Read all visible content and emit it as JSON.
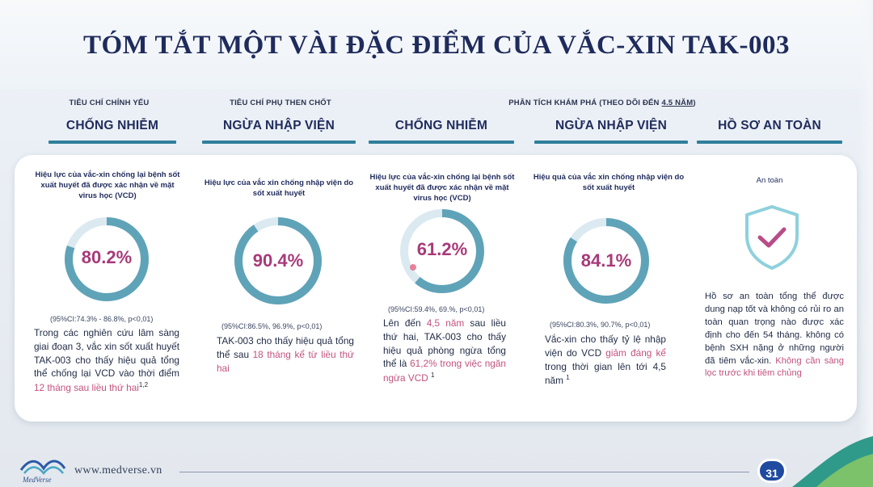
{
  "slide": {
    "title": "TÓM TẮT MỘT VÀI ĐẶC ĐIỂM CỦA VẮC-XIN TAK-003",
    "page_number": "31",
    "website": "www.medverse.vn",
    "logo_text": "MedVerse"
  },
  "categories": {
    "primary": "TIÊU CHÍ CHÍNH YẾU",
    "secondary": "TIÊU CHÍ PHỤ THEN CHỐT",
    "exploratory_prefix": "PHÂN TÍCH KHÁM PHÁ (THEO DÕI ĐẾN ",
    "exploratory_underlined": "4.5 NĂM",
    "exploratory_suffix": ")"
  },
  "columns": [
    {
      "heading": "CHỐNG NHIỄM",
      "description": "Hiệu lực của vắc-xin chống lại bệnh sốt xuất huyết đã được xác nhận về mặt virus học (VCD)",
      "value": "80.2%",
      "fraction": 0.802,
      "ci": "(95%CI:74.3% - 86.8%, p<0,01)",
      "text_a": "Trong các nghiên cứu lâm sàng giai đoạn 3, vắc xin sốt xuất huyết TAK-003 cho thấy hiệu quả tổng thể chống lại VCD vào thời điểm ",
      "text_pink": "12 tháng sau liều thứ hai",
      "text_b": "",
      "ref": "1,2"
    },
    {
      "heading": "NGỪA NHẬP VIỆN",
      "description": "Hiệu lực của vắc xin chống nhập viện do sốt xuất huyết",
      "value": "90.4%",
      "fraction": 0.904,
      "ci": "(95%CI:86.5%, 96.9%, p<0,01)",
      "text_a": "TAK-003 cho thấy hiệu quả tổng thể sau ",
      "text_pink": "18 tháng kể từ liều thứ hai",
      "text_b": "",
      "ref": ""
    },
    {
      "heading": "CHỐNG NHIỄM",
      "description": "Hiệu lực của vắc-xin chống lại bệnh sốt xuất huyết đã được xác nhận về mặt virus học (VCD)",
      "value": "61.2%",
      "fraction": 0.612,
      "ci": "(95%CI:59.4%, 69.%, p<0,01)",
      "text_a": "Lên đến ",
      "text_pink": "4,5 năm",
      "text_b": " sau liều thứ hai, TAK-003 cho thấy hiệu quả phòng ngừa tổng thể là ",
      "text_pink2": "61,2% trong việc ngăn ngừa VCD",
      "ref": "1"
    },
    {
      "heading": "NGỪA NHẬP VIỆN",
      "description": "Hiệu quả của vắc xin chống nhập viện do sốt xuất huyết",
      "value": "84.1%",
      "fraction": 0.841,
      "ci": "(95%CI:80.3%, 90.7%, p<0,01)",
      "text_a": "Vắc-xin cho thấy tỷ lệ nhập viện do VCD ",
      "text_pink": "giảm đáng kể",
      "text_b": " trong thời gian lên tới 4,5 năm",
      "ref": "1"
    },
    {
      "heading": "HỒ SƠ AN TOÀN",
      "description": "An toàn",
      "icon": "shield-check-icon",
      "text_a": "Hồ sơ an toàn tổng thể được dung nạp tốt và không có rủi ro an toàn quan trọng nào được xác định cho đến 54 tháng. không có bệnh SXH nặng ở những người đã tiêm vắc-xin. ",
      "text_pink": "Không cần sàng lọc trước khi tiêm chủng",
      "text_b": ""
    }
  ],
  "colors": {
    "ring": "#5fa3b8",
    "ring_track": "#dbe9f1",
    "value_pink": "#a73a78",
    "heading": "#1f2b5c",
    "accent_line": "#2f7f9a"
  }
}
